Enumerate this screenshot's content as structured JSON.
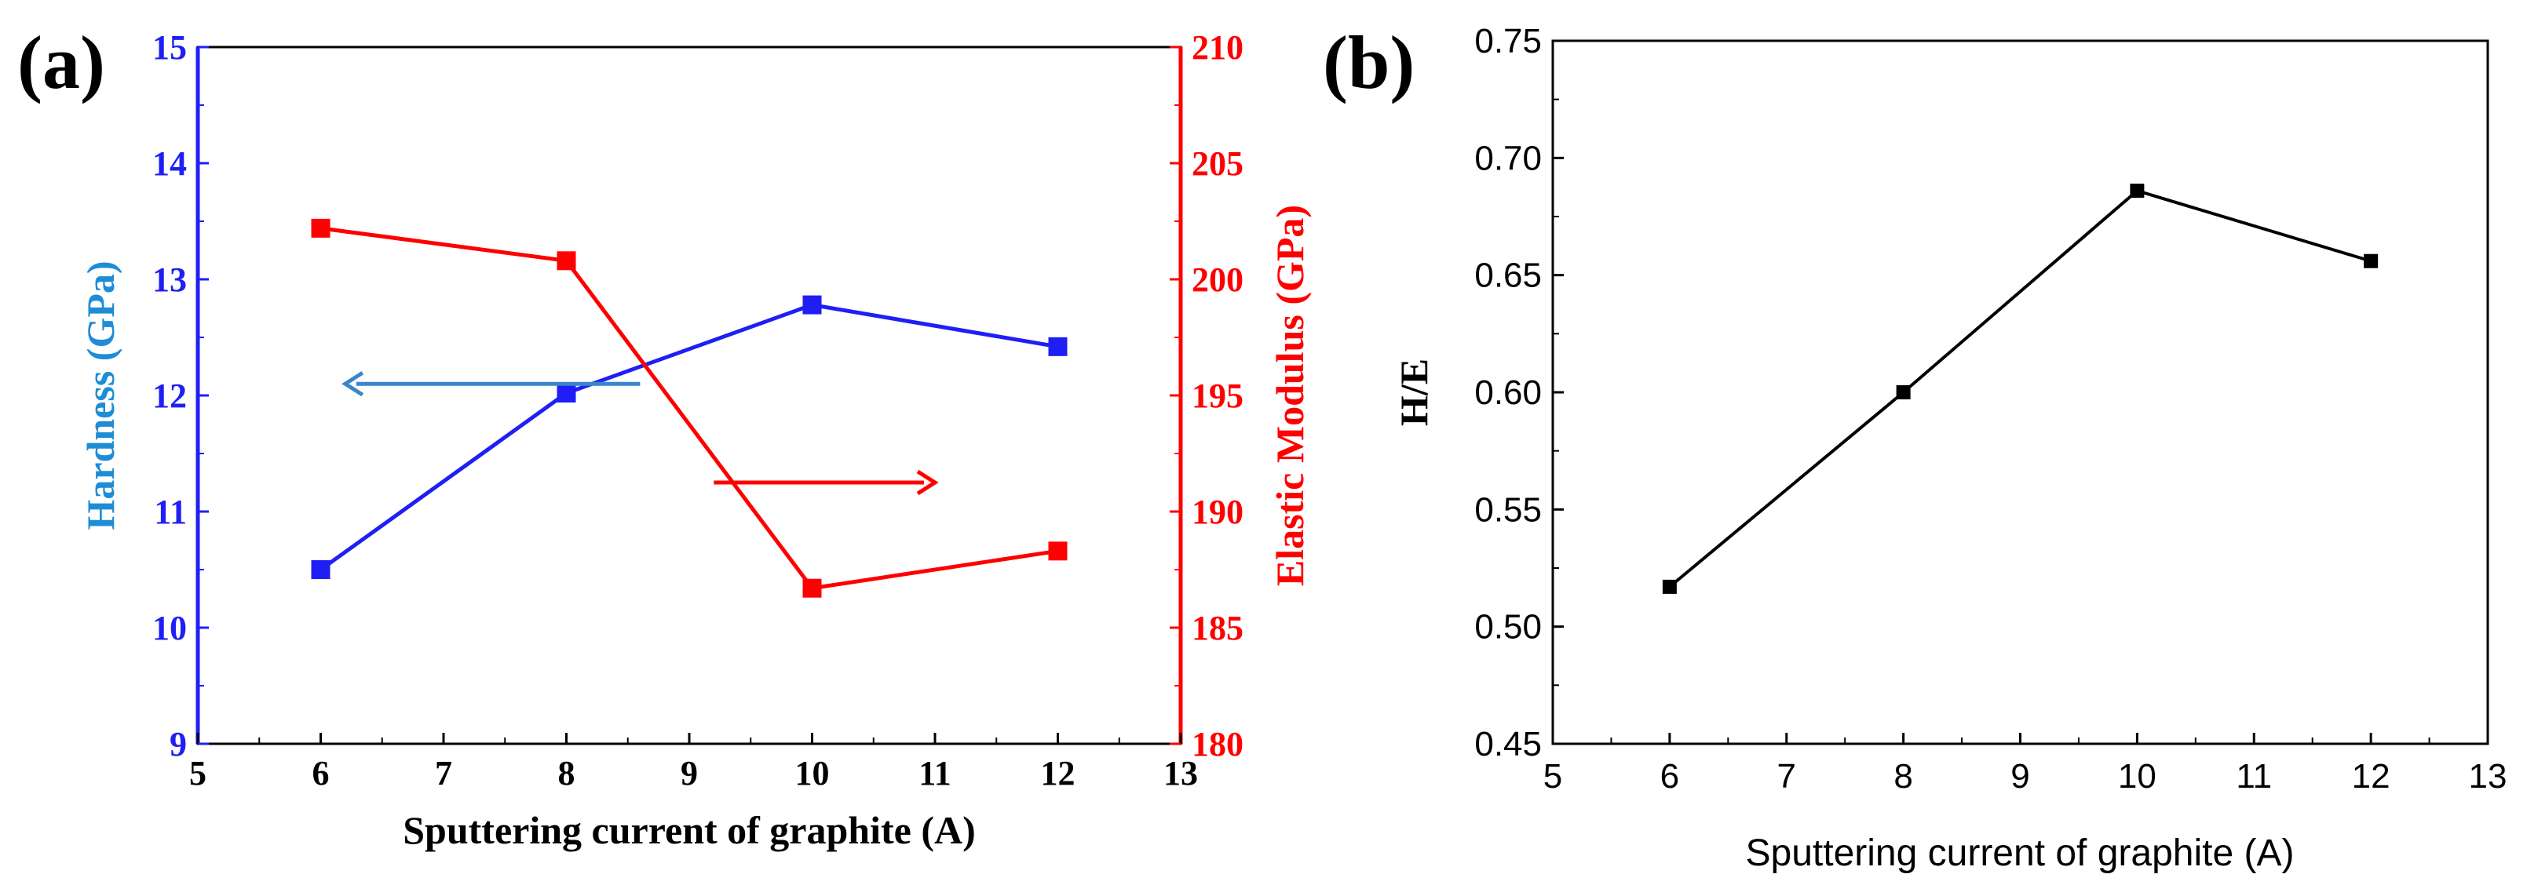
{
  "chart_data": [
    {
      "panel_label": "(a)",
      "type": "line",
      "dual_axis": true,
      "xlabel": "Sputtering current of graphite (A)",
      "xlim": [
        5,
        13
      ],
      "x_ticks": [
        "5",
        "6",
        "7",
        "8",
        "9",
        "10",
        "11",
        "12",
        "13"
      ],
      "y_left": {
        "label": "Hardness (GPa)",
        "label_color": "#1f8dd6",
        "color": "#1f1ff5",
        "lim": [
          9,
          15
        ],
        "ticks": [
          "9",
          "10",
          "11",
          "12",
          "13",
          "14",
          "15"
        ]
      },
      "y_right": {
        "label": "Elastic Modulus (GPa)",
        "color": "#ff0000",
        "lim": [
          180,
          210
        ],
        "ticks": [
          "180",
          "185",
          "190",
          "195",
          "200",
          "205",
          "210"
        ]
      },
      "series": [
        {
          "name": "Hardness",
          "axis": "left",
          "color": "#1f1ff5",
          "x": [
            6,
            8,
            10,
            12
          ],
          "values": [
            10.5,
            12.02,
            12.78,
            12.42
          ]
        },
        {
          "name": "Elastic Modulus",
          "axis": "right",
          "color": "#ff0000",
          "x": [
            6,
            8,
            10,
            12
          ],
          "values": [
            202.2,
            200.8,
            186.7,
            188.3
          ]
        }
      ],
      "annotations": [
        {
          "type": "arrow",
          "direction": "left",
          "color": "#3a86c8",
          "x_from": 8.6,
          "x_to": 6.2,
          "y_left": 12.1
        },
        {
          "type": "arrow",
          "direction": "right",
          "color": "#ff0000",
          "x_from": 9.2,
          "x_to": 11.0,
          "y_left": 11.25
        }
      ]
    },
    {
      "panel_label": "(b)",
      "type": "line",
      "xlabel": "Sputtering current of graphite (A)",
      "ylabel": "H/E",
      "xlim": [
        5,
        13
      ],
      "ylim": [
        0.45,
        0.75
      ],
      "x_ticks": [
        "5",
        "6",
        "7",
        "8",
        "9",
        "10",
        "11",
        "12",
        "13"
      ],
      "y_ticks": [
        "0.45",
        "0.50",
        "0.55",
        "0.60",
        "0.65",
        "0.70",
        "0.75"
      ],
      "series": [
        {
          "name": "H/E",
          "color": "#000000",
          "x": [
            6,
            8,
            10,
            12
          ],
          "values": [
            0.517,
            0.6,
            0.686,
            0.656
          ]
        }
      ]
    }
  ]
}
